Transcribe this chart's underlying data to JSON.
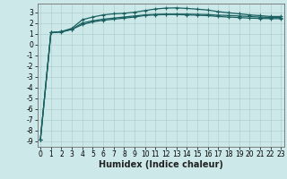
{
  "xlabel": "Humidex (Indice chaleur)",
  "bg_color": "#cce8e8",
  "grid_color_major": "#b0d0d0",
  "grid_color_minor": "#c0dcdc",
  "line_color": "#1a6060",
  "x_ticks": [
    0,
    1,
    2,
    3,
    4,
    5,
    6,
    7,
    8,
    9,
    10,
    11,
    12,
    13,
    14,
    15,
    16,
    17,
    18,
    19,
    20,
    21,
    22,
    23
  ],
  "y_ticks": [
    3,
    2,
    1,
    0,
    -1,
    -2,
    -3,
    -4,
    -5,
    -6,
    -7,
    -8,
    -9
  ],
  "ylim": [
    -9.5,
    3.8
  ],
  "xlim": [
    -0.3,
    23.3
  ],
  "line1_y": [
    -8.8,
    1.1,
    1.15,
    1.4,
    2.0,
    2.2,
    2.35,
    2.45,
    2.55,
    2.65,
    2.75,
    2.8,
    2.82,
    2.82,
    2.82,
    2.8,
    2.78,
    2.72,
    2.7,
    2.65,
    2.6,
    2.55,
    2.5,
    2.5
  ],
  "line2_y": [
    -8.8,
    1.1,
    1.2,
    1.5,
    2.3,
    2.55,
    2.75,
    2.85,
    2.9,
    3.0,
    3.15,
    3.3,
    3.38,
    3.4,
    3.35,
    3.28,
    3.2,
    3.05,
    2.95,
    2.85,
    2.75,
    2.68,
    2.6,
    2.6
  ],
  "line3_y": [
    -8.8,
    1.1,
    1.2,
    1.4,
    1.85,
    2.1,
    2.25,
    2.35,
    2.45,
    2.55,
    2.7,
    2.75,
    2.78,
    2.78,
    2.75,
    2.72,
    2.68,
    2.6,
    2.55,
    2.5,
    2.45,
    2.42,
    2.4,
    2.4
  ],
  "marker": "+",
  "markersize": 3.5,
  "linewidth": 0.9,
  "tick_fontsize": 5.5,
  "xlabel_fontsize": 7,
  "fig_width": 3.2,
  "fig_height": 2.0,
  "dpi": 100
}
